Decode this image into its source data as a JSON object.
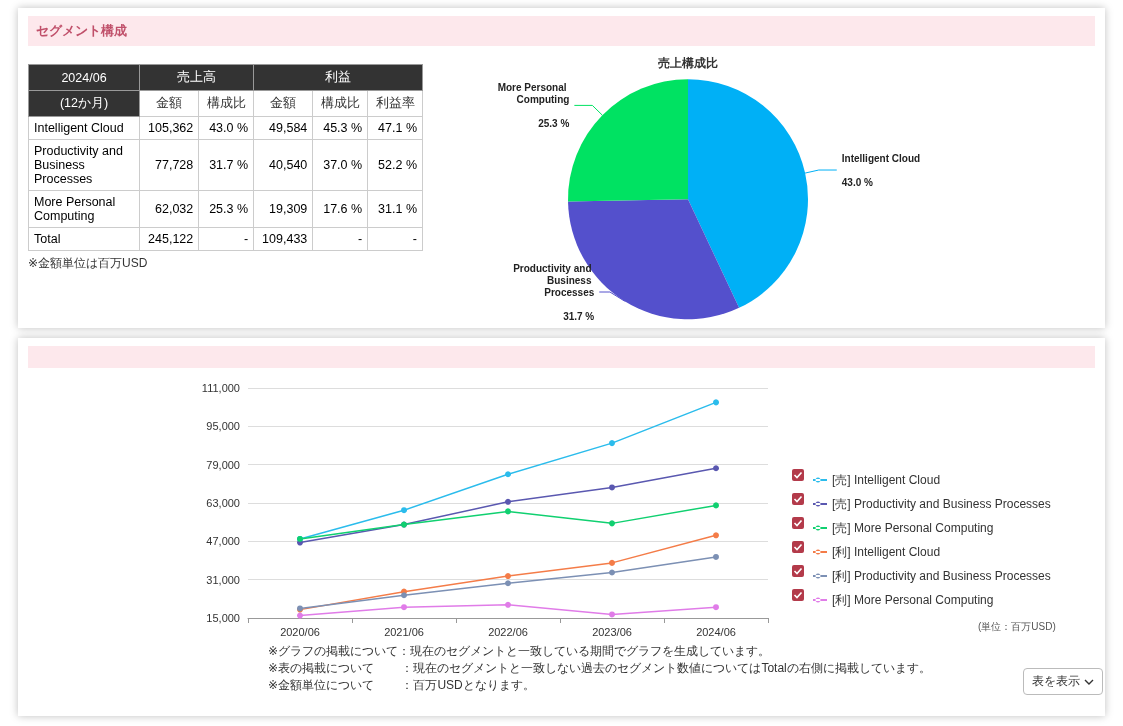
{
  "chart_data": [
    {
      "type": "other",
      "title": "セグメント構成",
      "categories": [
        "Intelligent Cloud",
        "Productivity and Business Processes",
        "More Personal Computing",
        "Total"
      ],
      "annotations": [
        "2024/06",
        "(12か月)",
        "売上高",
        "利益",
        "※金額単位は百万USD"
      ],
      "series": [
        {
          "name": "金額",
          "values": [
            105362,
            77728,
            62032,
            245122
          ],
          "value_labels": [
            "105,362",
            "77,728",
            "62,032",
            "245,122"
          ]
        },
        {
          "name": "構成比",
          "values": [
            43.0,
            31.7,
            25.3,
            null
          ],
          "value_labels": [
            "43.0 %",
            "31.7 %",
            "25.3 %",
            "-"
          ]
        },
        {
          "name": "金額",
          "values": [
            49584,
            40540,
            19309,
            109433
          ],
          "value_labels": [
            "49,584",
            "40,540",
            "19,309",
            "109,433"
          ]
        },
        {
          "name": "構成比",
          "values": [
            45.3,
            37.0,
            17.6,
            null
          ],
          "value_labels": [
            "45.3 %",
            "37.0 %",
            "17.6 %",
            "-"
          ]
        },
        {
          "name": "利益率",
          "values": [
            47.1,
            52.2,
            31.1,
            null
          ],
          "value_labels": [
            "47.1 %",
            "52.2 %",
            "31.1 %",
            "-"
          ]
        }
      ]
    },
    {
      "type": "pie",
      "title": "売上構成比",
      "categories": [
        "Intelligent Cloud",
        "Productivity and Business Processes",
        "More Personal Computing"
      ],
      "values": [
        43.0,
        31.7,
        25.3
      ],
      "colors": [
        "#00b0f6",
        "#5450cc",
        "#00e262"
      ],
      "value_labels": [
        "43.0 %",
        "31.7 %",
        "25.3 %"
      ]
    },
    {
      "type": "line",
      "categories": [
        "2020/06",
        "2021/06",
        "2022/06",
        "2023/06",
        "2024/06"
      ],
      "series": [
        {
          "name": "[売] Intelligent Cloud",
          "color": "#2bbcec",
          "values": [
            48000,
            60000,
            75000,
            88000,
            105000
          ]
        },
        {
          "name": "[売] Productivity and Business Processes",
          "color": "#5a58b0",
          "values": [
            46500,
            54000,
            63500,
            69500,
            77500
          ]
        },
        {
          "name": "[売] More Personal Computing",
          "color": "#10d070",
          "values": [
            48000,
            54000,
            59500,
            54500,
            62000
          ]
        },
        {
          "name": "[利] Intelligent Cloud",
          "color": "#f47c48",
          "values": [
            18500,
            26000,
            32500,
            38000,
            49500
          ]
        },
        {
          "name": "[利] Productivity and Business Processes",
          "color": "#7c90b4",
          "values": [
            19000,
            24500,
            29500,
            34000,
            40500
          ]
        },
        {
          "name": "[利] More Personal Computing",
          "color": "#e07ce8",
          "values": [
            16000,
            19500,
            20500,
            16500,
            19500
          ]
        }
      ],
      "ylim": [
        15000,
        111000
      ],
      "yticks": [
        {
          "value": 15000,
          "label": "15,000"
        },
        {
          "value": 31000,
          "label": "31,000"
        },
        {
          "value": 47000,
          "label": "47,000"
        },
        {
          "value": 63000,
          "label": "63,000"
        },
        {
          "value": 79000,
          "label": "79,000"
        },
        {
          "value": 95000,
          "label": "95,000"
        },
        {
          "value": 111000,
          "label": "111,000"
        }
      ],
      "grid": "y",
      "legend": "right",
      "marker": "circle",
      "line_style": "solid",
      "annotations": [
        "(単位：百万USD)",
        "※グラフの掲載について：現在のセグメントと一致している期間でグラフを生成しています。",
        "※表の掲載について　　 ：現在のセグメントと一致しない過去のセグメント数値についてはTotalの右側に掲載しています。",
        "※金額単位について　　 ：百万USDとなります。",
        "表を表示"
      ]
    }
  ]
}
